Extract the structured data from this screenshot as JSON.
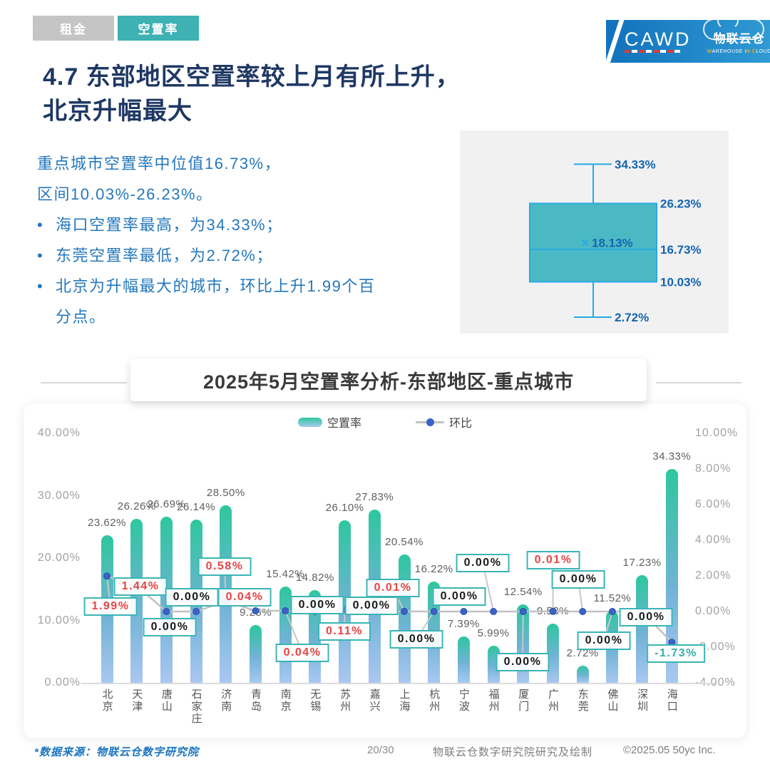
{
  "header": {
    "tabs": [
      {
        "label": "租金",
        "active": false
      },
      {
        "label": "空置率",
        "active": true
      }
    ],
    "logo": {
      "cawd": "CAWD",
      "brand": "物联云仓",
      "brand_sub_parts": [
        "W",
        "AREHOUSE I",
        "N",
        " C",
        "LOUD"
      ]
    }
  },
  "heading": {
    "line1": "4.7 东部地区空置率较上月有所上升，",
    "line2": "北京升幅最大"
  },
  "summary": {
    "lines": [
      "重点城市空置率中位值16.73%，",
      "区间10.03%-26.23%。"
    ],
    "bullet_glyph": "•",
    "bullets": [
      "海口空置率最高，为34.33%；",
      "东莞空置率最低，为2.72%；",
      "北京为升幅最大的城市，环比上升1.99个百\n分点。"
    ]
  },
  "boxplot": {
    "max": 34.33,
    "q3": 26.23,
    "mean": 18.13,
    "median": 16.73,
    "q1": 10.03,
    "min": 2.72,
    "mean_marker": "×"
  },
  "chart_data": {
    "type": "bar",
    "title": "2025年5月空置率分析-东部地区-重点城市",
    "legend": [
      "空置率",
      "环比"
    ],
    "legend_position": "top",
    "grid": false,
    "categories": [
      "北京",
      "天津",
      "唐山",
      "石家庄",
      "济南",
      "青岛",
      "南京",
      "无锡",
      "苏州",
      "嘉兴",
      "上海",
      "杭州",
      "宁波",
      "福州",
      "厦门",
      "广州",
      "东莞",
      "佛山",
      "深圳",
      "海口"
    ],
    "series": [
      {
        "name": "空置率",
        "type": "bar",
        "unit": "%",
        "values": [
          23.62,
          26.26,
          26.69,
          26.14,
          28.5,
          9.25,
          15.42,
          14.82,
          26.1,
          27.83,
          20.54,
          16.22,
          7.39,
          5.99,
          12.54,
          9.53,
          2.72,
          11.52,
          17.23,
          34.33
        ]
      },
      {
        "name": "环比",
        "type": "line",
        "unit": "%",
        "values": [
          1.99,
          1.44,
          0.0,
          0.0,
          0.58,
          0.04,
          0.04,
          0.0,
          0.11,
          0.0,
          0.01,
          0.0,
          0.0,
          0.0,
          0.0,
          0.01,
          0.0,
          0.0,
          0.0,
          -1.73
        ]
      }
    ],
    "left_axis": {
      "ticks": [
        "40.00%",
        "30.00%",
        "20.00%",
        "10.00%",
        "0.00%"
      ],
      "min": 0,
      "max": 40
    },
    "right_axis": {
      "ticks": [
        "10.00%",
        "8.00%",
        "6.00%",
        "4.00%",
        "2.00%",
        "0.00%",
        "-2.00%",
        "-4.00%"
      ],
      "min": -4,
      "max": 10
    }
  },
  "footer": {
    "source_note": "*数据来源：物联云仓数字研究院",
    "page": "20/30",
    "credit": "物联云仓数字研究院研究及绘制",
    "copyright": "©2025.05 50yc Inc."
  },
  "colors": {
    "accent_teal": "#3db1b4",
    "tab_inactive": "#c5c5c5",
    "title_navy": "#1f3864",
    "body_blue": "#2577bd",
    "bar_top": "#2ec79e",
    "bar_bottom": "#a9c7f1",
    "line_gray": "#c2c2c2",
    "dot_blue": "#3a63c8",
    "label_red": "#e84444",
    "label_teal": "#3aafa9",
    "label_zero": "#1a1a1a",
    "boxplot_fill": "#4bb9c4",
    "boxplot_line": "#29a9e1",
    "boxplot_label": "#1565af",
    "banner_blue_1": "#1272bd",
    "banner_blue_2": "#2f9ad3"
  }
}
